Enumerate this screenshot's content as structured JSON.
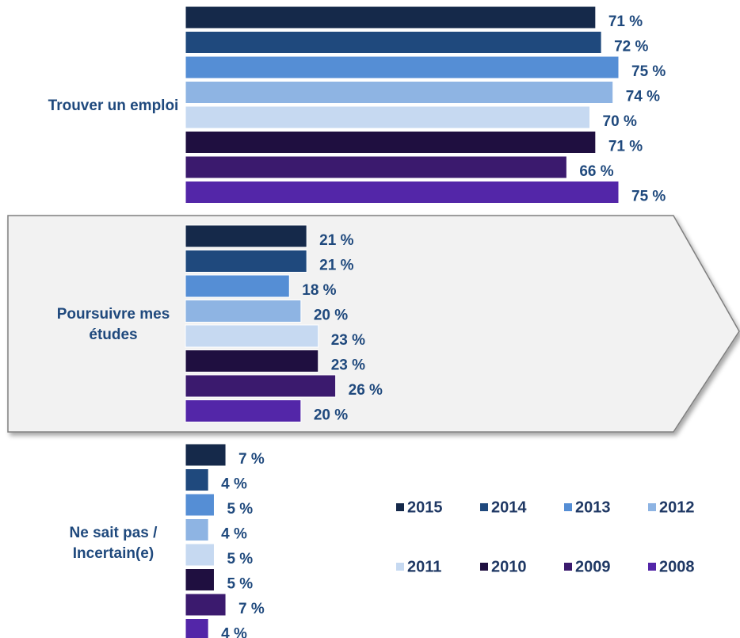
{
  "chart_data": {
    "type": "bar",
    "orientation": "horizontal",
    "categories": [
      "Trouver un emploi",
      "Poursuivre mes études",
      "Ne sait pas / Incertain(e)"
    ],
    "series": [
      {
        "name": "2015",
        "color": "#15294a",
        "values": [
          71,
          21,
          7
        ],
        "value_labels": [
          "71 %",
          "21 %",
          "7 %"
        ]
      },
      {
        "name": "2014",
        "color": "#1f497d",
        "values": [
          72,
          21,
          4
        ],
        "value_labels": [
          "72 %",
          "21 %",
          "4 %"
        ]
      },
      {
        "name": "2013",
        "color": "#558ed5",
        "values": [
          75,
          18,
          5
        ],
        "value_labels": [
          "75 %",
          "18 %",
          "5 %"
        ]
      },
      {
        "name": "2012",
        "color": "#8eb4e3",
        "values": [
          74,
          20,
          4
        ],
        "value_labels": [
          "74 %",
          "20 %",
          "4 %"
        ]
      },
      {
        "name": "2011",
        "color": "#c6d9f1",
        "values": [
          70,
          23,
          5
        ],
        "value_labels": [
          "70 %",
          "23 %",
          "5 %"
        ]
      },
      {
        "name": "2010",
        "color": "#1f0f40",
        "values": [
          71,
          23,
          5
        ],
        "value_labels": [
          "71 %",
          "23 %",
          "5 %"
        ]
      },
      {
        "name": "2009",
        "color": "#3b1a6e",
        "values": [
          66,
          26,
          7
        ],
        "value_labels": [
          "66 %",
          "26 %",
          "7 %"
        ]
      },
      {
        "name": "2008",
        "color": "#5326a8",
        "values": [
          75,
          20,
          4
        ],
        "value_labels": [
          "75 %",
          "20 %",
          "4 %"
        ]
      }
    ]
  }
}
